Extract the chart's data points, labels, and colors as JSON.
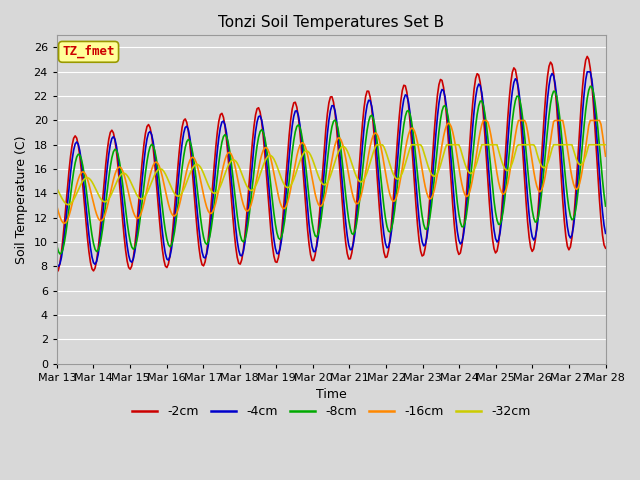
{
  "title": "Tonzi Soil Temperatures Set B",
  "xlabel": "Time",
  "ylabel": "Soil Temperature (C)",
  "ylim": [
    0,
    27
  ],
  "yticks": [
    0,
    2,
    4,
    6,
    8,
    10,
    12,
    14,
    16,
    18,
    20,
    22,
    24,
    26
  ],
  "background_color": "#d8d8d8",
  "plot_bg_color": "#d8d8d8",
  "grid_color": "#ffffff",
  "series": [
    {
      "label": "-2cm",
      "color": "#cc0000",
      "lw": 1.2
    },
    {
      "label": "-4cm",
      "color": "#0000cc",
      "lw": 1.2
    },
    {
      "label": "-8cm",
      "color": "#00aa00",
      "lw": 1.2
    },
    {
      "label": "-16cm",
      "color": "#ff8800",
      "lw": 1.2
    },
    {
      "label": "-32cm",
      "color": "#cccc00",
      "lw": 1.2
    }
  ],
  "xtick_labels": [
    "Mar 13",
    "Mar 14",
    "Mar 15",
    "Mar 16",
    "Mar 17",
    "Mar 18",
    "Mar 19",
    "Mar 20",
    "Mar 21",
    "Mar 22",
    "Mar 23",
    "Mar 24",
    "Mar 25",
    "Mar 26",
    "Mar 27",
    "Mar 28"
  ],
  "annotation_text": "TZ_fmet",
  "annotation_color": "#cc0000",
  "annotation_bg": "#ffff99",
  "annotation_border": "#999900"
}
